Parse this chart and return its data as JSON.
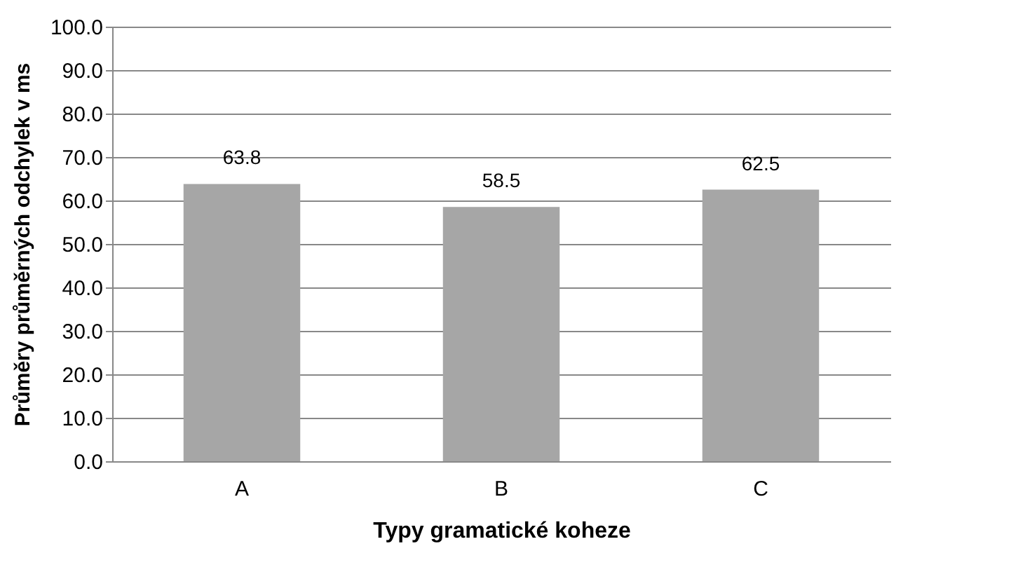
{
  "chart_data": {
    "type": "bar",
    "xlabel": "Typy gramatické koheze",
    "ylabel": "Průměry průměrných odchylek v ms",
    "categories": [
      "A",
      "B",
      "C"
    ],
    "values": [
      63.8,
      58.5,
      62.5
    ],
    "color": "#a6a6a6",
    "ylim": [
      0,
      100
    ],
    "yticks": [
      {
        "value": 0,
        "label": "0.0"
      },
      {
        "value": 10,
        "label": "10.0"
      },
      {
        "value": 20,
        "label": "20.0"
      },
      {
        "value": 30,
        "label": "30.0"
      },
      {
        "value": 40,
        "label": "40.0"
      },
      {
        "value": 50,
        "label": "50.0"
      },
      {
        "value": 60,
        "label": "60.0"
      },
      {
        "value": 70,
        "label": "70.0"
      },
      {
        "value": 80,
        "label": "80.0"
      },
      {
        "value": 90,
        "label": "90.0"
      },
      {
        "value": 100,
        "label": "100.0"
      }
    ],
    "grid": "y",
    "data_labels": true
  }
}
